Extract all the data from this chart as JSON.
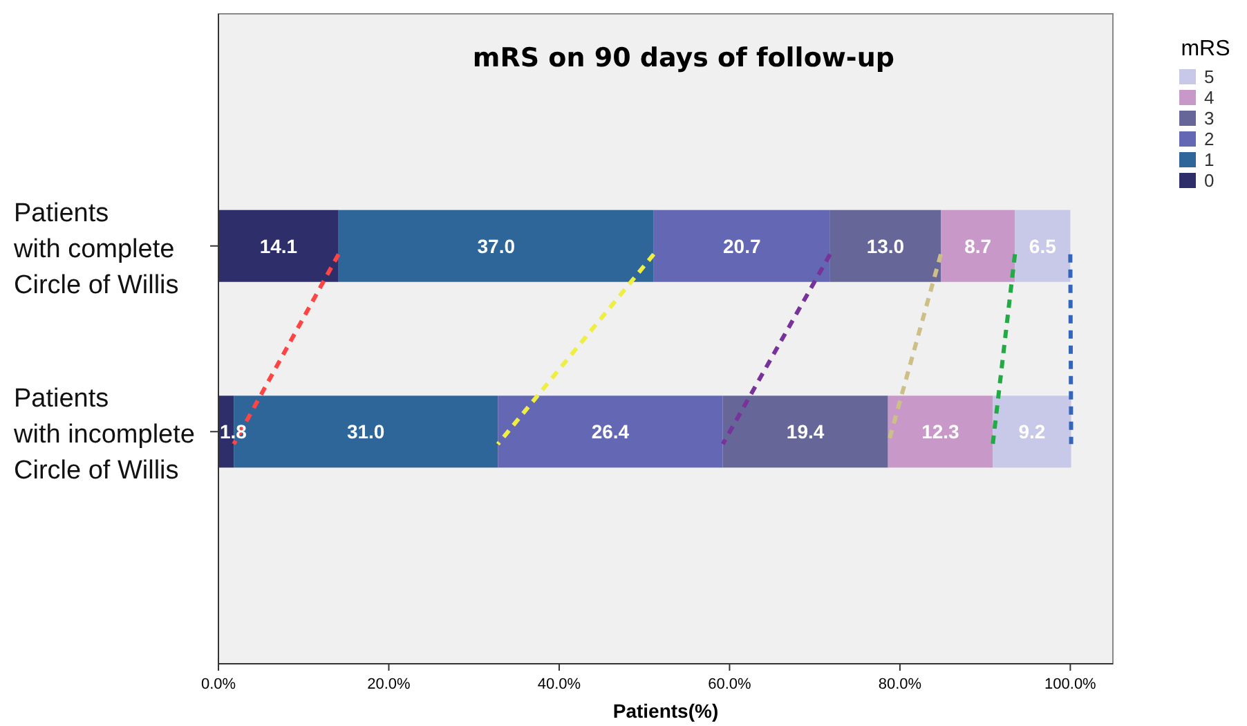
{
  "chart_data": {
    "type": "bar",
    "orientation": "horizontal",
    "stacked": true,
    "title": "mRS on 90 days of follow-up",
    "xlabel": "Patients(%)",
    "legend_title": "mRS",
    "legend": "top right",
    "categories": [
      "Patients with complete Circle of Willis",
      "Patients with incomplete Circle of Willis"
    ],
    "series": [
      {
        "name": "0",
        "color": "#2e2e6a",
        "values": [
          14.1,
          1.8
        ],
        "value_labels": [
          "14.1",
          "1.8"
        ]
      },
      {
        "name": "1",
        "color": "#2e6699",
        "values": [
          37.0,
          31.0
        ],
        "value_labels": [
          "37.0",
          "31.0"
        ]
      },
      {
        "name": "2",
        "color": "#6468b4",
        "values": [
          20.7,
          26.4
        ],
        "value_labels": [
          "20.7",
          "26.4"
        ]
      },
      {
        "name": "3",
        "color": "#666699",
        "values": [
          13.0,
          19.4
        ],
        "value_labels": [
          "13.0",
          "19.4"
        ]
      },
      {
        "name": "4",
        "color": "#c898c8",
        "values": [
          8.7,
          12.3
        ],
        "value_labels": [
          "8.7",
          "12.3"
        ]
      },
      {
        "name": "5",
        "color": "#c8c8e8",
        "values": [
          6.5,
          9.2
        ],
        "value_labels": [
          "6.5",
          "9.2"
        ]
      }
    ],
    "xlim": [
      0,
      105
    ],
    "xticks": [
      {
        "value": 0,
        "label": "0.0%"
      },
      {
        "value": 20,
        "label": "20.0%"
      },
      {
        "value": 40,
        "label": "40.0%"
      },
      {
        "value": 60,
        "label": "60.0%"
      },
      {
        "value": 80,
        "label": "80.0%"
      },
      {
        "value": 100,
        "label": "100.0%"
      }
    ],
    "grid": false
  }
}
